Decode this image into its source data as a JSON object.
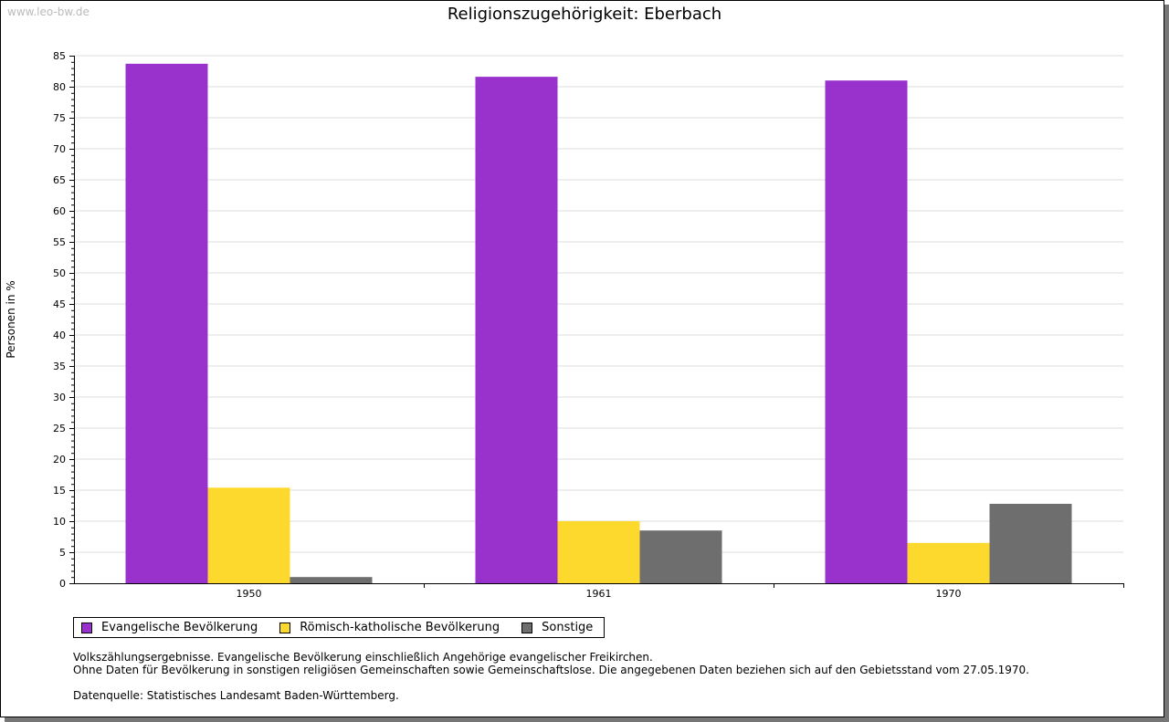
{
  "watermark": "www.leo-bw.de",
  "chart_data": {
    "type": "bar",
    "title": "Religionszugehörigkeit: Eberbach",
    "xlabel": "",
    "ylabel": "Personen in %",
    "ylim": [
      0,
      85
    ],
    "ytick_step": 5,
    "grid": true,
    "legend_position": "bottom-left",
    "categories": [
      "1950",
      "1961",
      "1970"
    ],
    "series": [
      {
        "name": "Evangelische Bevölkerung",
        "color": "#9932cc",
        "values": [
          83.7,
          81.6,
          81.0
        ]
      },
      {
        "name": "Römisch-katholische Bevölkerung",
        "color": "#fdd82d",
        "values": [
          15.4,
          10.0,
          6.5
        ]
      },
      {
        "name": "Sonstige",
        "color": "#6e6e6e",
        "values": [
          1.0,
          8.5,
          12.8
        ]
      }
    ]
  },
  "notes": {
    "line1": "Volkszählungsergebnisse. Evangelische Bevölkerung einschließlich Angehörige evangelischer Freikirchen.",
    "line2": "Ohne Daten für Bevölkerung in sonstigen religiösen Gemeinschaften sowie Gemeinschaftslose. Die angegebenen Daten beziehen sich auf den Gebietsstand vom 27.05.1970.",
    "source": "Datenquelle: Statistisches Landesamt Baden-Württemberg."
  }
}
